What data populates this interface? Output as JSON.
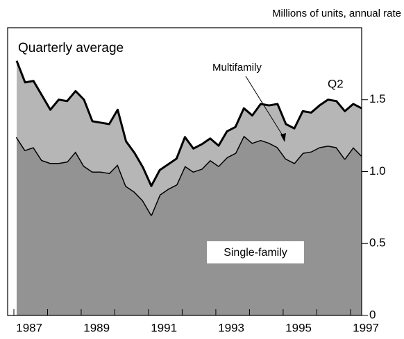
{
  "chart_data": {
    "type": "stacked-area",
    "unit_label": "Millions of units, annual rate",
    "annotations": {
      "panel": "Quarterly average",
      "multifamily": "Multifamily",
      "last": "Q2",
      "single_family": "Single-family"
    },
    "categories": [
      "1987",
      null,
      null,
      null,
      null,
      null,
      null,
      null,
      "1989",
      null,
      null,
      null,
      null,
      null,
      null,
      null,
      "1991",
      null,
      null,
      null,
      null,
      null,
      null,
      null,
      "1993",
      null,
      null,
      null,
      null,
      null,
      null,
      null,
      "1995",
      null,
      null,
      null,
      null,
      null,
      null,
      null,
      "1997",
      null
    ],
    "series": [
      {
        "name": "Single-family",
        "color": "#939393",
        "values": [
          1.24,
          1.15,
          1.17,
          1.08,
          1.06,
          1.06,
          1.07,
          1.14,
          1.04,
          1.0,
          1.0,
          0.99,
          1.05,
          0.9,
          0.86,
          0.8,
          0.7,
          0.84,
          0.88,
          0.91,
          1.04,
          1.0,
          1.02,
          1.08,
          1.04,
          1.1,
          1.13,
          1.25,
          1.2,
          1.22,
          1.2,
          1.17,
          1.09,
          1.06,
          1.13,
          1.14,
          1.17,
          1.18,
          1.17,
          1.09,
          1.17,
          1.11
        ]
      },
      {
        "name": "Multifamily",
        "color": "#b6b6b6",
        "values": [
          0.53,
          0.47,
          0.46,
          0.45,
          0.37,
          0.44,
          0.42,
          0.42,
          0.46,
          0.35,
          0.34,
          0.34,
          0.38,
          0.31,
          0.27,
          0.23,
          0.2,
          0.17,
          0.17,
          0.18,
          0.2,
          0.16,
          0.17,
          0.15,
          0.14,
          0.18,
          0.18,
          0.19,
          0.19,
          0.25,
          0.26,
          0.3,
          0.24,
          0.24,
          0.29,
          0.27,
          0.29,
          0.32,
          0.32,
          0.33,
          0.3,
          0.33
        ]
      }
    ],
    "ylim": [
      0,
      2.0
    ],
    "yticks": [
      0,
      0.5,
      {
        "value": 1,
        "label": "1.0"
      },
      1.5
    ]
  }
}
